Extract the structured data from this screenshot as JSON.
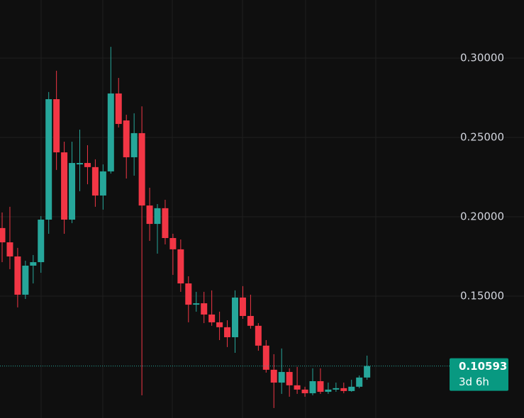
{
  "chart_data": {
    "type": "candlestick",
    "series": [
      {
        "up_color": "#26a69a",
        "down_color": "#f23645",
        "open": [
          0.1929,
          0.1839,
          0.175,
          0.1509,
          0.1692,
          0.1714,
          0.1982,
          0.2741,
          0.2406,
          0.1982,
          0.233,
          0.2339,
          0.2313,
          0.2134,
          0.2286,
          0.2777,
          0.2607,
          0.2375,
          0.2527,
          0.2071,
          0.1955,
          0.2054,
          0.1866,
          0.1795,
          0.158,
          0.1446,
          0.1455,
          0.1384,
          0.1335,
          0.1304,
          0.1241,
          0.1491,
          0.1375,
          0.1313,
          0.1188,
          0.1036,
          0.0955,
          0.1022,
          0.0938,
          0.0911,
          0.0888,
          0.0964,
          0.0897,
          0.0911,
          0.092,
          0.0902,
          0.0929,
          0.0987
        ],
        "high": [
          0.2027,
          0.2063,
          0.1804,
          0.1723,
          0.1759,
          0.2004,
          0.2786,
          0.292,
          0.2473,
          0.2473,
          0.2549,
          0.2451,
          0.2362,
          0.233,
          0.3071,
          0.2875,
          0.2643,
          0.2652,
          0.2696,
          0.2183,
          0.208,
          0.2107,
          0.1893,
          0.1857,
          0.1625,
          0.1527,
          0.1527,
          0.1536,
          0.1402,
          0.1348,
          0.1536,
          0.1563,
          0.1509,
          0.133,
          0.1223,
          0.1134,
          0.117,
          0.1045,
          0.1054,
          0.0929,
          0.1045,
          0.1045,
          0.0955,
          0.0955,
          0.0955,
          0.0973,
          0.1,
          0.1125
        ],
        "low": [
          0.1714,
          0.167,
          0.1429,
          0.1482,
          0.158,
          0.1647,
          0.1893,
          0.2295,
          0.1893,
          0.196,
          0.2161,
          0.2205,
          0.2063,
          0.2045,
          0.2272,
          0.2563,
          0.2241,
          0.2259,
          0.0875,
          0.1848,
          0.1768,
          0.1826,
          0.1634,
          0.1527,
          0.1335,
          0.1402,
          0.133,
          0.1313,
          0.1223,
          0.1179,
          0.1143,
          0.1357,
          0.1295,
          0.1156,
          0.1018,
          0.0795,
          0.0884,
          0.0866,
          0.0884,
          0.0866,
          0.0875,
          0.0884,
          0.0884,
          0.0897,
          0.0888,
          0.0897,
          0.092,
          0.0973
        ],
        "close": [
          0.1839,
          0.175,
          0.1509,
          0.1692,
          0.1714,
          0.1982,
          0.2741,
          0.2406,
          0.1982,
          0.2339,
          0.2339,
          0.2313,
          0.2134,
          0.2286,
          0.2777,
          0.2585,
          0.2375,
          0.2527,
          0.2071,
          0.1955,
          0.2054,
          0.1866,
          0.1795,
          0.158,
          0.1446,
          0.1455,
          0.1384,
          0.1335,
          0.1304,
          0.1241,
          0.1491,
          0.1375,
          0.1313,
          0.1188,
          0.1036,
          0.0955,
          0.1022,
          0.0938,
          0.0911,
          0.0888,
          0.0964,
          0.0897,
          0.0911,
          0.092,
          0.0902,
          0.0929,
          0.0987,
          0.10593
        ]
      }
    ],
    "ylim": [
      0.0732,
      0.3366
    ],
    "yticks": [
      {
        "value": 0.15,
        "label": "0.15000"
      },
      {
        "value": 0.2,
        "label": "0.20000"
      },
      {
        "value": 0.25,
        "label": "0.25000"
      },
      {
        "value": 0.3,
        "label": "0.30000"
      }
    ],
    "grid": true,
    "last_price": 0.10593,
    "countdown": "3d 6h"
  }
}
